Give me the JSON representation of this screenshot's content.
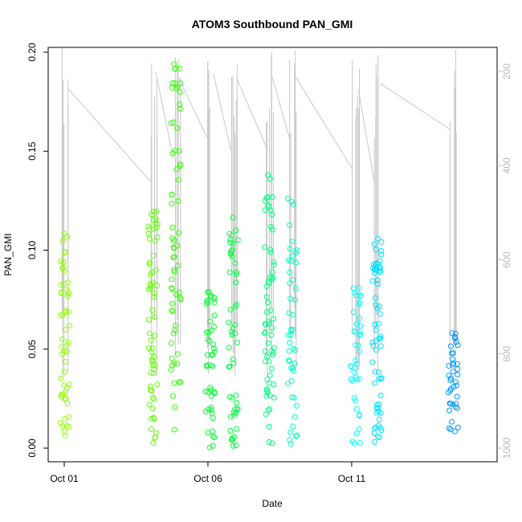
{
  "chart_data": {
    "type": "scatter",
    "title": "ATOM3 Southbound PAN_GMI",
    "xlabel": "Date",
    "ylabel": "PAN_GMI",
    "x_ticks": [
      "Oct 01",
      "Oct 06",
      "Oct 11"
    ],
    "y_ticks": [
      "0.00",
      "0.05",
      "0.10",
      "0.15",
      "0.20"
    ],
    "y2_ticks": [
      "200",
      "400",
      "600",
      "800",
      "1000"
    ],
    "xlim_days": [
      0.0,
      14.5
    ],
    "ylim": [
      -0.005,
      0.2
    ],
    "y2lim": [
      1010,
      155
    ],
    "y2_reversed": true,
    "y2_label_color": "#b8b8b8",
    "marker": "open-circle",
    "grid": false,
    "legend": "none",
    "colors": {
      "pressure_line": "#c8c8c8",
      "gradient": [
        "#90ff00",
        "#60ff00",
        "#30ff00",
        "#00ff40",
        "#00ff90",
        "#00ffd8",
        "#00e8ff",
        "#00b8ff",
        "#0098ff"
      ]
    },
    "flight_segments": [
      {
        "day": 0.0,
        "pan_min": 0.006,
        "pan_max": 0.11,
        "color": "#90ff00"
      },
      {
        "day": 3.05,
        "pan_min": 0.001,
        "pan_max": 0.121,
        "color": "#60ff00"
      },
      {
        "day": 3.85,
        "pan_min": 0.0,
        "pan_max": 0.2,
        "color": "#30ff00"
      },
      {
        "day": 5.05,
        "pan_min": 0.0,
        "pan_max": 0.08,
        "color": "#00ff30"
      },
      {
        "day": 5.85,
        "pan_min": 0.0,
        "pan_max": 0.123,
        "color": "#00ff40"
      },
      {
        "day": 7.1,
        "pan_min": 0.002,
        "pan_max": 0.14,
        "color": "#00ff80"
      },
      {
        "day": 7.9,
        "pan_min": 0.0,
        "pan_max": 0.13,
        "color": "#00ffc0"
      },
      {
        "day": 10.1,
        "pan_min": 0.001,
        "pan_max": 0.082,
        "color": "#00ffff"
      },
      {
        "day": 10.85,
        "pan_min": 0.003,
        "pan_max": 0.106,
        "color": "#00e0ff"
      },
      {
        "day": 13.5,
        "pan_min": 0.007,
        "pan_max": 0.061,
        "color": "#0098ff"
      }
    ]
  }
}
